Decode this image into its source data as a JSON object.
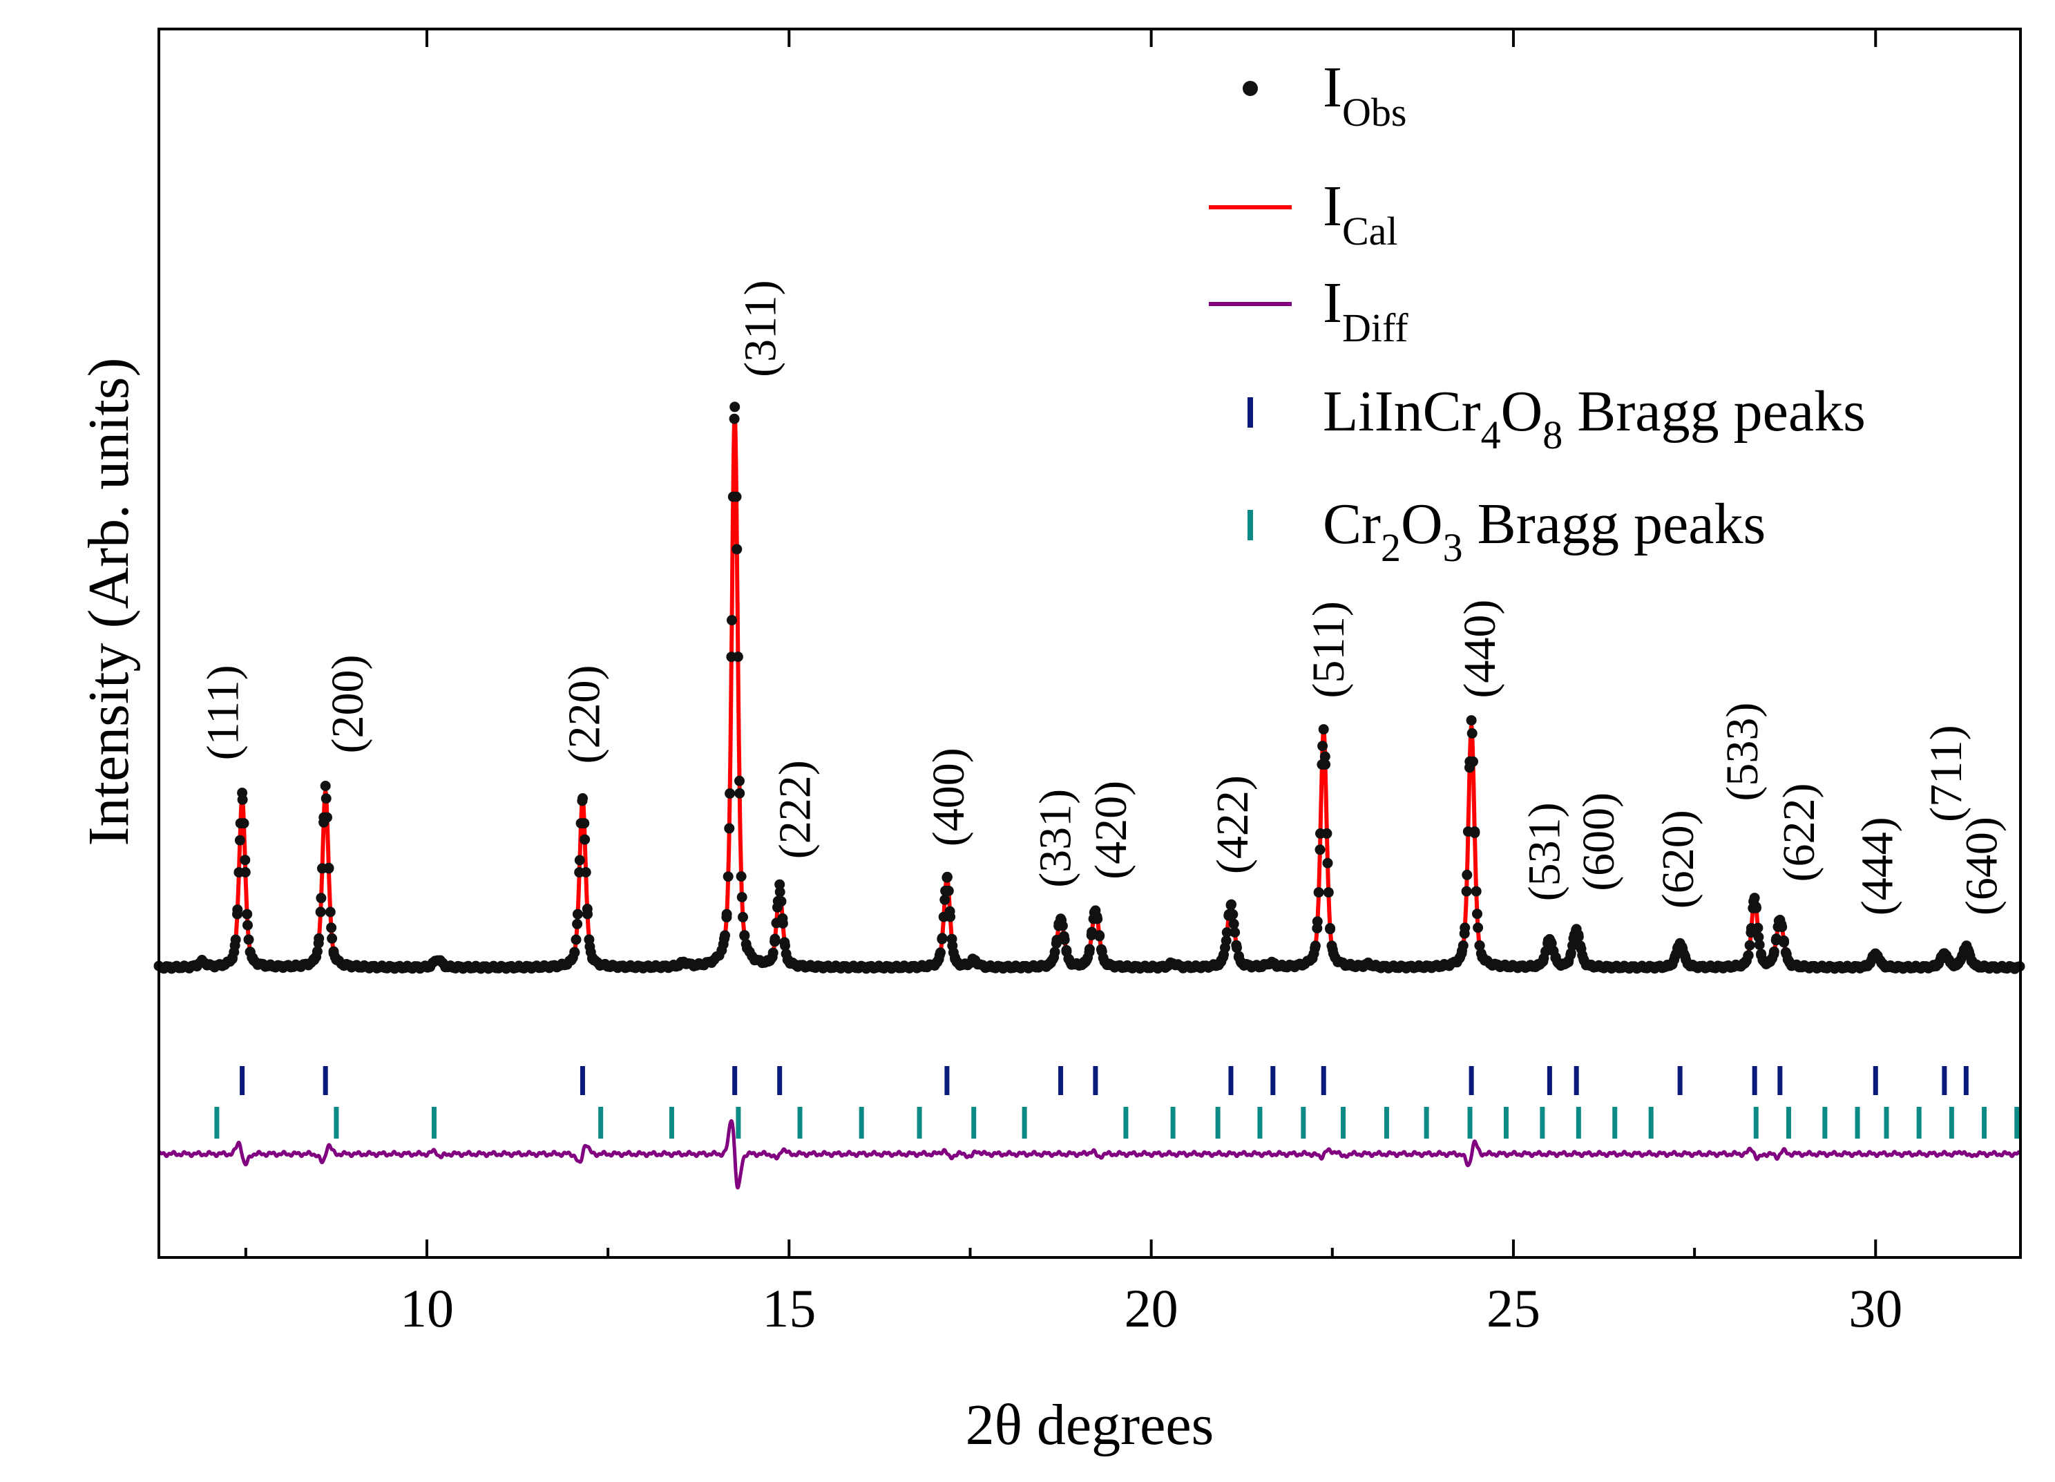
{
  "chart_data": {
    "type": "line",
    "xlabel": "2θ degrees",
    "ylabel": "Intensity (Arb. units)",
    "xlim": [
      6.3,
      32.0
    ],
    "ylim": [
      -0.42,
      1.36
    ],
    "x_ticks": [
      10,
      15,
      20,
      25,
      30
    ],
    "x_tick_labels": [
      "10",
      "15",
      "20",
      "25",
      "30"
    ],
    "legend_position": "top-right",
    "legend": [
      {
        "marker": "dot",
        "main": "I",
        "sub": "Obs",
        "tail": ""
      },
      {
        "marker": "line-red",
        "main": "I",
        "sub": "Cal",
        "tail": ""
      },
      {
        "marker": "line-purple",
        "main": "I",
        "sub": "Diff",
        "tail": ""
      },
      {
        "marker": "tick-navy",
        "parts": [
          {
            "t": "LiInCr"
          },
          {
            "t": "4",
            "sub": true
          },
          {
            "t": "O"
          },
          {
            "t": "8",
            "sub": true
          },
          {
            "t": " Bragg peaks"
          }
        ]
      },
      {
        "marker": "tick-teal",
        "parts": [
          {
            "t": "Cr"
          },
          {
            "t": "2",
            "sub": true
          },
          {
            "t": "O"
          },
          {
            "t": "3",
            "sub": true
          },
          {
            "t": " Bragg peaks"
          }
        ]
      }
    ],
    "colors": {
      "obs": "#111111",
      "cal": "#ff0000",
      "diff": "#800080",
      "bragg_main": "#0a1a7a",
      "bragg_second": "#0b8a86",
      "frame": "#000000"
    },
    "background": 0.0,
    "peaks": [
      {
        "x": 7.45,
        "h": 0.245,
        "hkl": "(111)",
        "w": 0.05
      },
      {
        "x": 8.6,
        "h": 0.255,
        "hkl": "(200)",
        "w": 0.05
      },
      {
        "x": 12.15,
        "h": 0.245,
        "hkl": "(220)",
        "w": 0.05
      },
      {
        "x": 14.25,
        "h": 0.8,
        "hkl": "(311)",
        "w": 0.05
      },
      {
        "x": 14.87,
        "h": 0.11,
        "hkl": "(222)",
        "w": 0.05
      },
      {
        "x": 17.18,
        "h": 0.13,
        "hkl": "(400)",
        "w": 0.05
      },
      {
        "x": 18.75,
        "h": 0.07,
        "hkl": "(331)",
        "w": 0.06
      },
      {
        "x": 19.23,
        "h": 0.082,
        "hkl": "(420)",
        "w": 0.06
      },
      {
        "x": 21.1,
        "h": 0.09,
        "hkl": "(422)",
        "w": 0.06
      },
      {
        "x": 22.38,
        "h": 0.345,
        "hkl": "(511)",
        "w": 0.05
      },
      {
        "x": 24.42,
        "h": 0.35,
        "hkl": "(440)",
        "w": 0.05
      },
      {
        "x": 25.5,
        "h": 0.04,
        "hkl": "(531)",
        "w": 0.06
      },
      {
        "x": 25.87,
        "h": 0.055,
        "hkl": "(600)",
        "w": 0.06
      },
      {
        "x": 27.3,
        "h": 0.035,
        "hkl": "(620)",
        "w": 0.06
      },
      {
        "x": 28.33,
        "h": 0.1,
        "hkl": "(533)",
        "w": 0.05
      },
      {
        "x": 28.68,
        "h": 0.068,
        "hkl": "(622)",
        "w": 0.06
      },
      {
        "x": 30.0,
        "h": 0.02,
        "hkl": "(444)",
        "w": 0.06
      },
      {
        "x": 30.95,
        "h": 0.02,
        "hkl": "(711)",
        "w": 0.06
      },
      {
        "x": 31.25,
        "h": 0.03,
        "hkl": "(640)",
        "w": 0.06
      }
    ],
    "minor_peaks": [
      {
        "x": 6.9,
        "h": 0.008
      },
      {
        "x": 10.15,
        "h": 0.012
      },
      {
        "x": 13.55,
        "h": 0.006
      },
      {
        "x": 17.55,
        "h": 0.01
      },
      {
        "x": 20.3,
        "h": 0.006
      },
      {
        "x": 21.65,
        "h": 0.006
      },
      {
        "x": 23.0,
        "h": 0.004
      }
    ],
    "bragg_LiInCr4O8": [
      7.45,
      8.6,
      12.15,
      14.25,
      14.87,
      17.18,
      18.75,
      19.23,
      21.1,
      21.68,
      22.38,
      24.42,
      25.5,
      25.87,
      27.3,
      28.33,
      28.68,
      30.0,
      30.95,
      31.25
    ],
    "bragg_Cr2O3": [
      7.1,
      8.75,
      10.1,
      12.4,
      13.38,
      14.3,
      15.15,
      16.0,
      16.8,
      17.55,
      18.25,
      19.65,
      20.3,
      20.92,
      21.5,
      22.1,
      22.65,
      23.25,
      23.8,
      24.4,
      24.9,
      25.4,
      25.9,
      26.4,
      26.9,
      28.35,
      28.8,
      29.3,
      29.75,
      30.15,
      30.6,
      31.05,
      31.5,
      31.95
    ],
    "diff_features": [
      {
        "x": 7.45,
        "amp": 0.045
      },
      {
        "x": 8.6,
        "amp": 0.035
      },
      {
        "x": 10.15,
        "amp": 0.012
      },
      {
        "x": 12.15,
        "amp": 0.04
      },
      {
        "x": 14.25,
        "amp": 0.14
      },
      {
        "x": 14.87,
        "amp": 0.02
      },
      {
        "x": 17.18,
        "amp": 0.015
      },
      {
        "x": 17.55,
        "amp": 0.012
      },
      {
        "x": 19.23,
        "amp": 0.012
      },
      {
        "x": 22.38,
        "amp": 0.014
      },
      {
        "x": 22.6,
        "amp": 0.012
      },
      {
        "x": 24.42,
        "amp": 0.045
      },
      {
        "x": 28.33,
        "amp": 0.02
      },
      {
        "x": 28.68,
        "amp": 0.012
      },
      {
        "x": 31.25,
        "amp": 0.01
      }
    ]
  }
}
